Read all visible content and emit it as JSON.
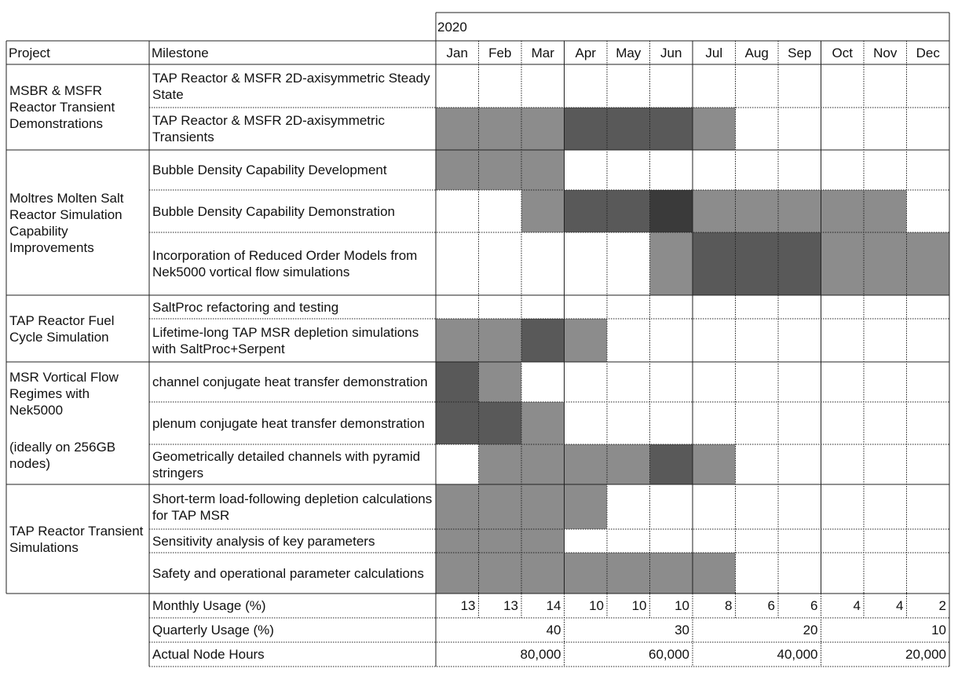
{
  "header": {
    "year": "2020",
    "project_label": "Project",
    "milestone_label": "Milestone",
    "months": [
      "Jan",
      "Feb",
      "Mar",
      "Apr",
      "May",
      "Jun",
      "Jul",
      "Aug",
      "Sep",
      "Oct",
      "Nov",
      "Dec"
    ]
  },
  "shade_colors": {
    "0": "#ffffff",
    "1": "#8c8c8c",
    "2": "#595959",
    "3": "#3a3a3a"
  },
  "projects": [
    {
      "name": "MSBR & MSFR Reactor Transient Demonstrations",
      "milestones": [
        {
          "name": "TAP Reactor & MSFR 2D-axisymmetric Steady State",
          "months": [
            0,
            0,
            0,
            0,
            0,
            0,
            0,
            0,
            0,
            0,
            0,
            0
          ]
        },
        {
          "name": "TAP Reactor & MSFR 2D-axisymmetric Transients",
          "months": [
            1,
            1,
            1,
            2,
            2,
            2,
            1,
            0,
            0,
            0,
            0,
            0
          ]
        }
      ]
    },
    {
      "name": "Moltres Molten Salt Reactor Simulation Capability Improvements",
      "milestones": [
        {
          "name": "Bubble Density Capability Development",
          "months": [
            1,
            1,
            1,
            0,
            0,
            0,
            0,
            0,
            0,
            0,
            0,
            0
          ]
        },
        {
          "name": "Bubble Density Capability Demonstration",
          "months": [
            0,
            0,
            1,
            2,
            2,
            3,
            1,
            1,
            1,
            1,
            1,
            0
          ]
        },
        {
          "name": "Incorporation of Reduced Order Models from Nek5000 vortical flow simulations",
          "months": [
            0,
            0,
            0,
            0,
            0,
            1,
            2,
            2,
            2,
            1,
            1,
            1
          ]
        }
      ]
    },
    {
      "name": "TAP Reactor Fuel Cycle Simulation",
      "milestones": [
        {
          "name": "SaltProc refactoring and testing",
          "months": [
            0,
            0,
            0,
            0,
            0,
            0,
            0,
            0,
            0,
            0,
            0,
            0
          ]
        },
        {
          "name": "Lifetime-long TAP MSR depletion simulations with SaltProc+Serpent",
          "months": [
            1,
            1,
            2,
            1,
            0,
            0,
            0,
            0,
            0,
            0,
            0,
            0
          ]
        }
      ]
    },
    {
      "name": "MSR Vortical Flow Regimes with Nek5000",
      "note": "(ideally on 256GB nodes)",
      "milestones": [
        {
          "name": "channel conjugate heat transfer demonstration",
          "months": [
            2,
            1,
            0,
            0,
            0,
            0,
            0,
            0,
            0,
            0,
            0,
            0
          ]
        },
        {
          "name": "plenum conjugate heat transfer demonstration",
          "months": [
            2,
            2,
            1,
            0,
            0,
            0,
            0,
            0,
            0,
            0,
            0,
            0
          ]
        },
        {
          "name": "Geometrically detailed channels with pyramid stringers",
          "months": [
            0,
            1,
            1,
            1,
            1,
            2,
            1,
            0,
            0,
            0,
            0,
            0
          ]
        }
      ]
    },
    {
      "name": "TAP Reactor Transient Simulations",
      "milestones": [
        {
          "name": "Short-term load-following depletion calculations for TAP MSR",
          "months": [
            1,
            1,
            1,
            1,
            0,
            0,
            0,
            0,
            0,
            0,
            0,
            0
          ]
        },
        {
          "name": "Sensitivity analysis of key parameters",
          "months": [
            1,
            1,
            1,
            0,
            0,
            0,
            0,
            0,
            0,
            0,
            0,
            0
          ]
        },
        {
          "name": "Safety and operational parameter calculations",
          "months": [
            1,
            1,
            1,
            1,
            1,
            1,
            1,
            0,
            0,
            0,
            0,
            0
          ]
        }
      ]
    }
  ],
  "summary": {
    "monthly_label": "Monthly Usage (%)",
    "monthly_values": [
      "13",
      "13",
      "14",
      "10",
      "10",
      "10",
      "8",
      "6",
      "6",
      "4",
      "4",
      "2"
    ],
    "quarterly_label": "Quarterly Usage (%)",
    "quarterly_values": [
      "40",
      "30",
      "20",
      "10"
    ],
    "hours_label": "Actual Node Hours",
    "hours_values": [
      "80,000",
      "60,000",
      "40,000",
      "20,000"
    ]
  }
}
